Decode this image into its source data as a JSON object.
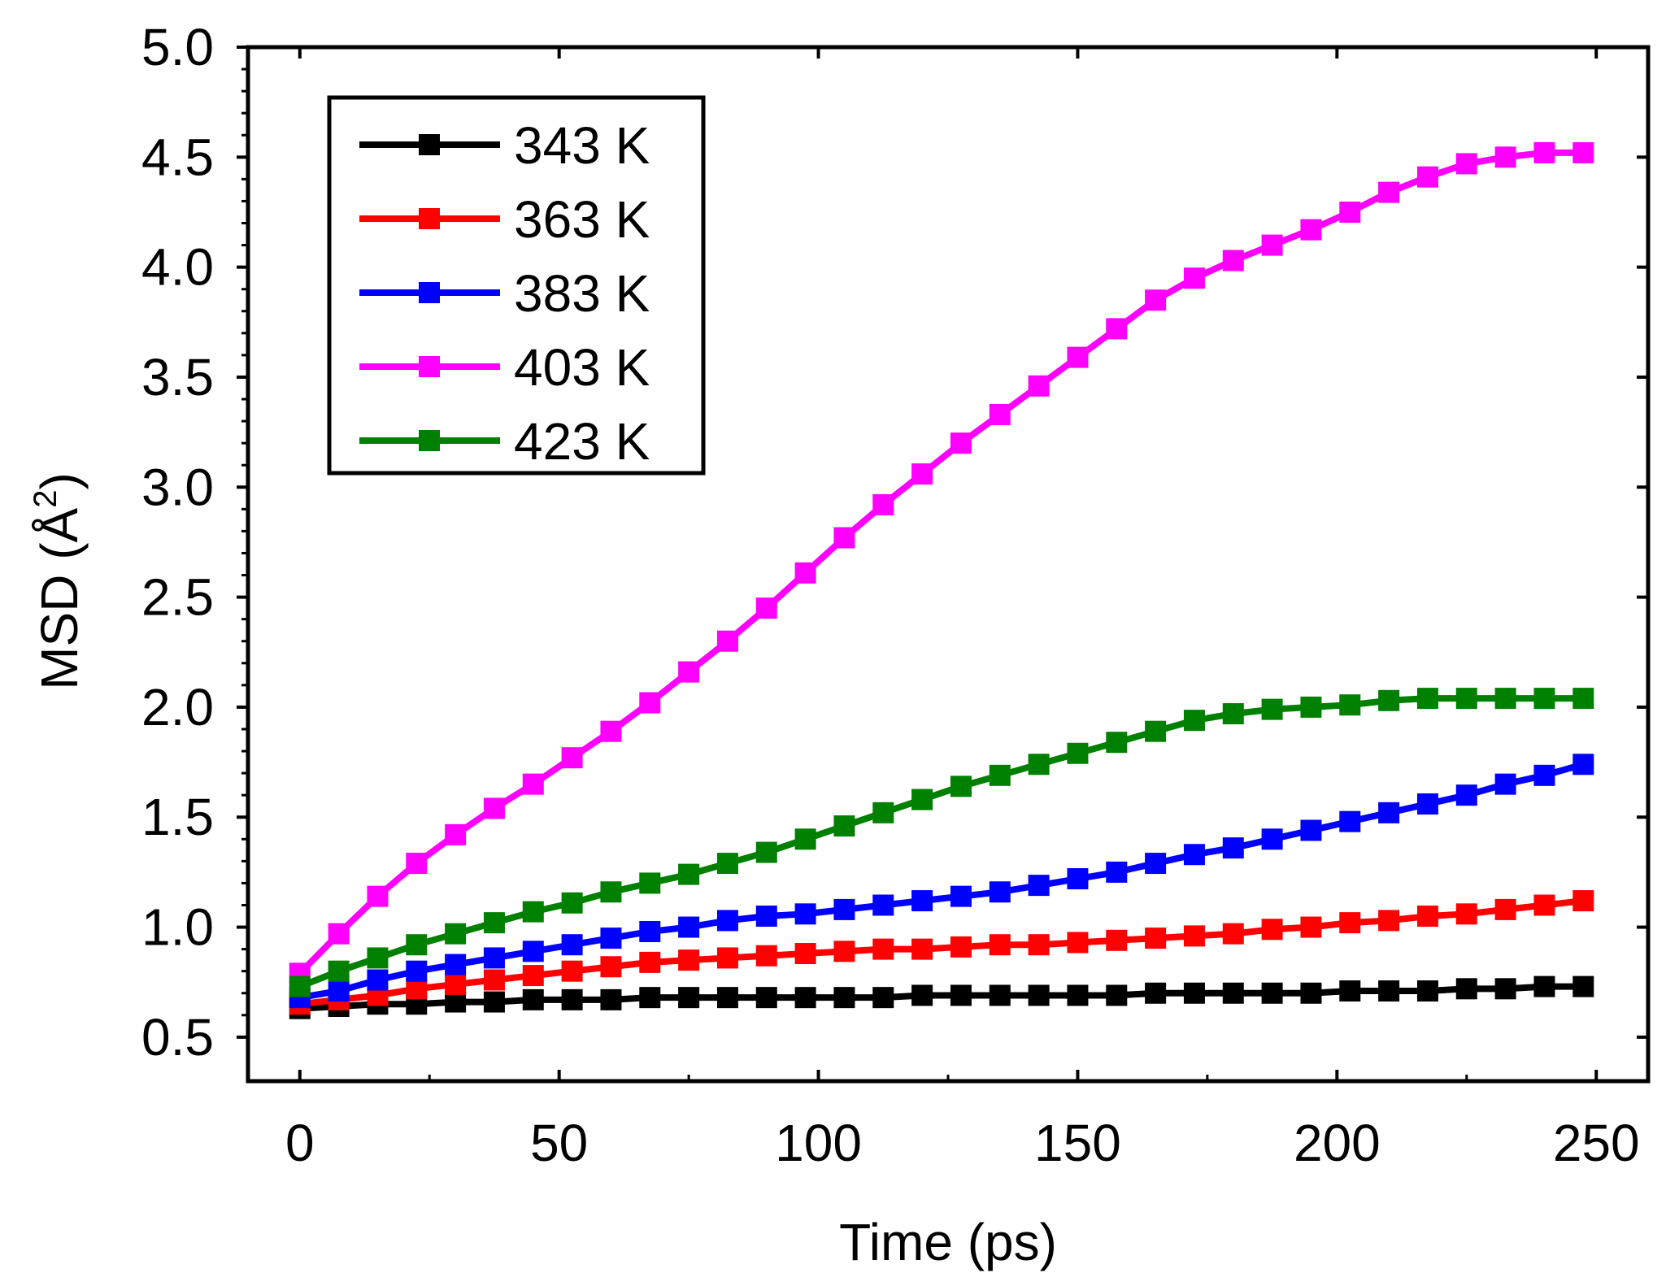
{
  "chart_data": {
    "type": "line",
    "title": "",
    "xlabel": "Time (ps)",
    "ylabel_main": "MSD (Å",
    "ylabel_sup": "2",
    "ylabel_close": ")",
    "xlim": [
      -10,
      260
    ],
    "ylim": [
      0.3,
      5.0
    ],
    "xticks": [
      0,
      50,
      100,
      150,
      200,
      250
    ],
    "xtick_labels": [
      "0",
      "50",
      "100",
      "150",
      "200",
      "250"
    ],
    "yticks": [
      0.5,
      1.0,
      1.5,
      2.0,
      2.5,
      3.0,
      3.5,
      4.0,
      4.5,
      5.0
    ],
    "ytick_labels": [
      "0.5",
      "1.0",
      "1.5",
      "2.0",
      "2.5",
      "3.0",
      "3.5",
      "4.0",
      "4.5",
      "5.0"
    ],
    "grid": false,
    "legend_position": "top-left",
    "x": [
      0,
      7.5,
      15,
      22.5,
      30,
      37.5,
      45,
      52.5,
      60,
      67.5,
      75,
      82.5,
      90,
      97.5,
      105,
      112.5,
      120,
      127.5,
      135,
      142.5,
      150,
      157.5,
      165,
      172.5,
      180,
      187.5,
      195,
      202.5,
      210,
      217.5,
      225,
      232.5,
      240,
      247.5
    ],
    "series": [
      {
        "name": "343 K",
        "color": "#000000",
        "values": [
          0.63,
          0.64,
          0.65,
          0.65,
          0.66,
          0.66,
          0.67,
          0.67,
          0.67,
          0.68,
          0.68,
          0.68,
          0.68,
          0.68,
          0.68,
          0.68,
          0.69,
          0.69,
          0.69,
          0.69,
          0.69,
          0.69,
          0.7,
          0.7,
          0.7,
          0.7,
          0.7,
          0.71,
          0.71,
          0.71,
          0.72,
          0.72,
          0.73,
          0.73
        ]
      },
      {
        "name": "363 K",
        "color": "#ff0000",
        "values": [
          0.65,
          0.67,
          0.69,
          0.72,
          0.74,
          0.76,
          0.78,
          0.8,
          0.82,
          0.84,
          0.85,
          0.86,
          0.87,
          0.88,
          0.89,
          0.9,
          0.9,
          0.91,
          0.92,
          0.92,
          0.93,
          0.94,
          0.95,
          0.96,
          0.97,
          0.99,
          1.0,
          1.02,
          1.03,
          1.05,
          1.06,
          1.08,
          1.1,
          1.12
        ]
      },
      {
        "name": "383 K",
        "color": "#0000ff",
        "values": [
          0.68,
          0.71,
          0.76,
          0.8,
          0.83,
          0.86,
          0.89,
          0.92,
          0.95,
          0.98,
          1.0,
          1.03,
          1.05,
          1.06,
          1.08,
          1.1,
          1.12,
          1.14,
          1.16,
          1.19,
          1.22,
          1.25,
          1.29,
          1.33,
          1.36,
          1.4,
          1.44,
          1.48,
          1.52,
          1.56,
          1.6,
          1.65,
          1.69,
          1.74
        ]
      },
      {
        "name": "403 K",
        "color": "#ff00ff",
        "values": [
          0.79,
          0.97,
          1.14,
          1.29,
          1.42,
          1.54,
          1.65,
          1.77,
          1.89,
          2.02,
          2.16,
          2.3,
          2.45,
          2.61,
          2.77,
          2.92,
          3.06,
          3.2,
          3.33,
          3.46,
          3.59,
          3.72,
          3.85,
          3.95,
          4.03,
          4.1,
          4.17,
          4.25,
          4.34,
          4.41,
          4.47,
          4.5,
          4.52,
          4.52
        ]
      },
      {
        "name": "423 K",
        "color": "#008000",
        "values": [
          0.73,
          0.8,
          0.86,
          0.92,
          0.97,
          1.02,
          1.07,
          1.11,
          1.16,
          1.2,
          1.24,
          1.29,
          1.34,
          1.4,
          1.46,
          1.52,
          1.58,
          1.64,
          1.69,
          1.74,
          1.79,
          1.84,
          1.89,
          1.94,
          1.97,
          1.99,
          2.0,
          2.01,
          2.03,
          2.04,
          2.04,
          2.04,
          2.04,
          2.04
        ]
      }
    ]
  }
}
